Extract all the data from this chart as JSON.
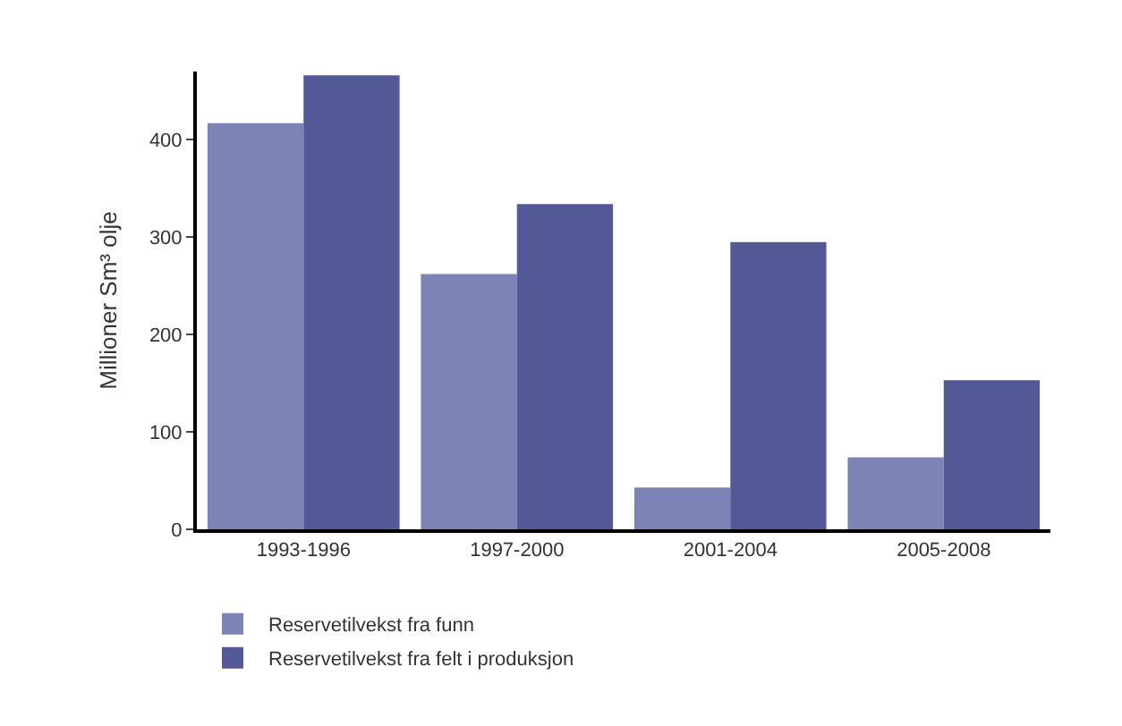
{
  "chart_data": {
    "type": "bar",
    "ylabel": "Millioner Sm³ olje",
    "categories": [
      "1993-1996",
      "1997-2000",
      "2001-2004",
      "2005-2008"
    ],
    "series": [
      {
        "name": "Reservetilvekst fra funn",
        "color": "#7b84b4",
        "values": [
          417,
          262,
          43,
          74
        ]
      },
      {
        "name": "Reservetilvekst fra felt i produksjon",
        "color": "#535996",
        "values": [
          466,
          334,
          295,
          153
        ]
      }
    ],
    "ylim": [
      0,
      470
    ],
    "yticks": [
      0,
      100,
      200,
      300,
      400
    ],
    "legend": "bottom left"
  }
}
